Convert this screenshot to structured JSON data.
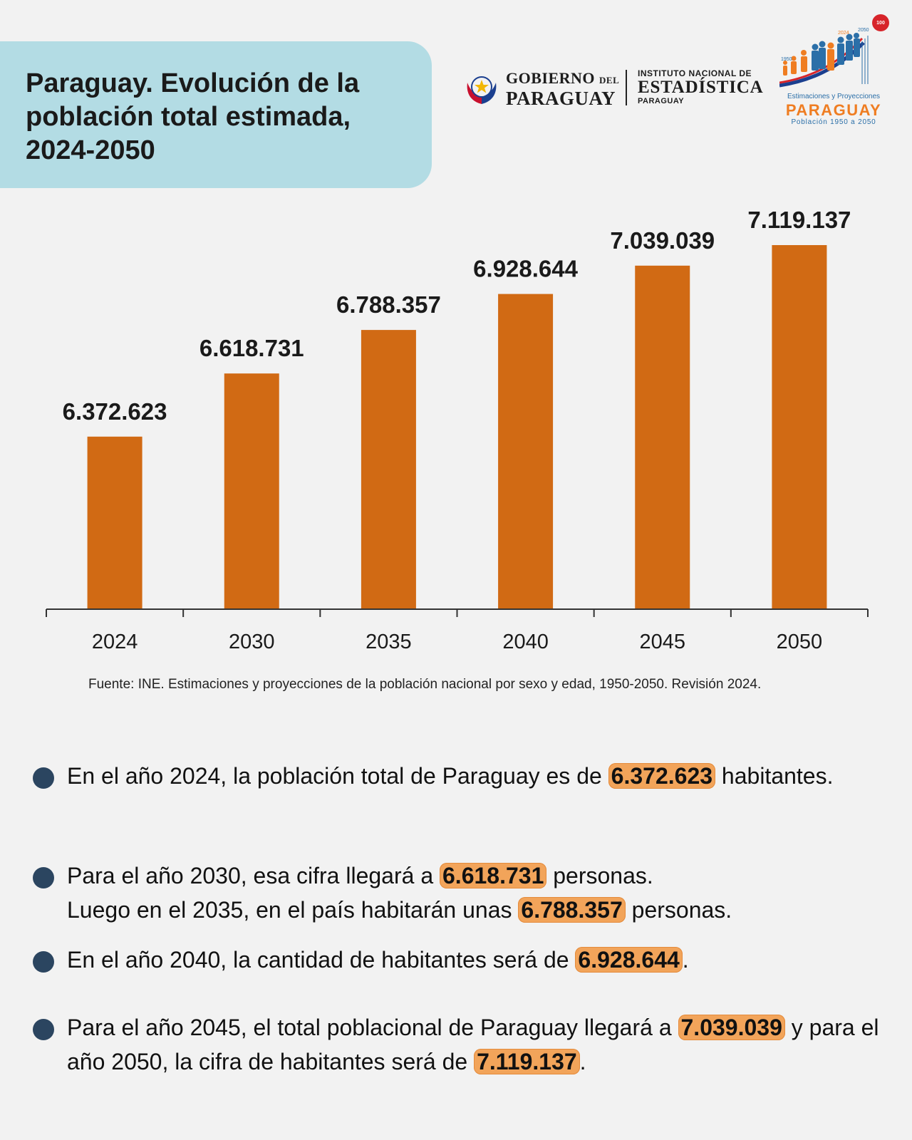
{
  "header": {
    "title": "Paraguay. Evolución de la población total estimada, 2024-2050"
  },
  "logos": {
    "gov_line1": "GOBIERNO",
    "gov_del": "DEL",
    "gov_line2": "PARAGUAY",
    "ine_line1": "INSTITUTO NACIONAL DE",
    "ine_line2": "ESTADÍSTICA",
    "ine_line3": "PARAGUAY",
    "proj_badge": "100 años",
    "proj_year_start": "1950",
    "proj_year_mid": "2024",
    "proj_year_end": "2050",
    "proj_subtitle": "Estimaciones y Proyecciones",
    "proj_name": "PARAGUAY",
    "proj_range": "Población 1950 a 2050"
  },
  "colors": {
    "bar": "#d16a14",
    "title_bg": "#b3dce4",
    "highlight": "#f2a45a",
    "bullet": "#2b4560"
  },
  "chart_data": {
    "type": "bar",
    "categories": [
      "2024",
      "2030",
      "2035",
      "2040",
      "2045",
      "2050"
    ],
    "values": [
      6372623,
      6618731,
      6788357,
      6928644,
      7039039,
      7119137
    ],
    "value_labels": [
      "6.372.623",
      "6.618.731",
      "6.788.357",
      "6.928.644",
      "7.039.039",
      "7.119.137"
    ],
    "title": "",
    "xlabel": "",
    "ylabel": "",
    "grid": false
  },
  "source": {
    "text": "Fuente: INE. Estimaciones y proyecciones de la población nacional por sexo y edad, 1950-2050. Revisión 2024."
  },
  "bullets": [
    {
      "pre": "En el año 2024, la población total de Paraguay es de ",
      "hl": "6.372.623",
      "post": " habitantes."
    },
    {
      "pre": "Para el año 2030, esa cifra llegará a ",
      "hl": "6.618.731",
      "mid": " personas.",
      "line2_pre": "Luego en el 2035, en el país habitarán unas ",
      "hl2": "6.788.357",
      "post": " personas."
    },
    {
      "pre": "En el año 2040, la cantidad de habitantes será de ",
      "hl": "6.928.644",
      "post": "."
    },
    {
      "pre": "Para el año 2045, el total poblacional de Paraguay llegará a ",
      "hl": "7.039.039",
      "mid": " y para el año 2050, la cifra de habitantes será de ",
      "hl2": "7.119.137",
      "post": "."
    }
  ]
}
